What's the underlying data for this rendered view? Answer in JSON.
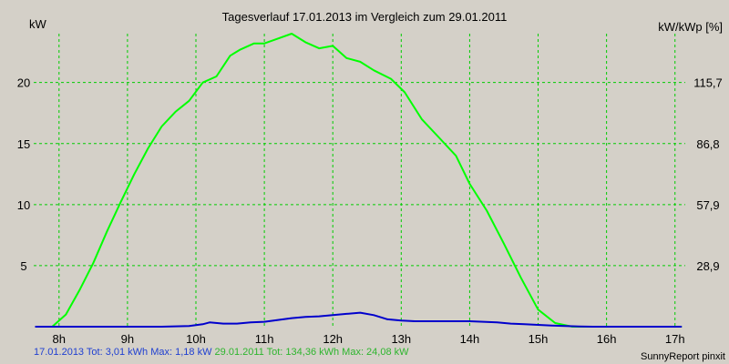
{
  "chart_data": {
    "type": "line",
    "title": "Tagesverlauf 17.01.2013 im Vergleich zum 29.01.2011",
    "ylabel_left": "kW",
    "ylabel_right": "kW/kWp [%]",
    "x_ticks": [
      "8h",
      "9h",
      "10h",
      "11h",
      "12h",
      "13h",
      "14h",
      "15h",
      "16h",
      "17h"
    ],
    "x_tick_hours": [
      8,
      9,
      10,
      11,
      12,
      13,
      14,
      15,
      16,
      17
    ],
    "xlim": [
      7.63,
      17.15
    ],
    "ylim": [
      0,
      24
    ],
    "y_ticks_left": [
      5,
      10,
      15,
      20
    ],
    "y_ticks_right": [
      "28,9",
      "57,9",
      "86,8",
      "115,7"
    ],
    "grid": true,
    "colors": {
      "green": "#00ff00",
      "blue": "#0000cc",
      "grid": "#00cc00",
      "background": "#d4d0c8"
    },
    "series": [
      {
        "name": "29.01.2011",
        "color": "#00ff00",
        "x": [
          7.65,
          7.9,
          8.1,
          8.3,
          8.5,
          8.7,
          8.9,
          9.1,
          9.3,
          9.5,
          9.7,
          9.9,
          10.1,
          10.3,
          10.5,
          10.65,
          10.85,
          11.0,
          11.15,
          11.4,
          11.6,
          11.8,
          12.0,
          12.2,
          12.4,
          12.6,
          12.85,
          13.05,
          13.3,
          13.55,
          13.8,
          14.0,
          14.25,
          14.5,
          14.75,
          15.0,
          15.25,
          15.5,
          15.75,
          16.0,
          16.2,
          16.4,
          16.65,
          16.9,
          17.1
        ],
        "y": [
          0,
          0,
          1.0,
          3.0,
          5.2,
          7.8,
          10.2,
          12.5,
          14.6,
          16.4,
          17.6,
          18.5,
          20.0,
          20.5,
          22.2,
          22.7,
          23.2,
          23.2,
          23.5,
          24.0,
          23.3,
          22.8,
          23.0,
          22.0,
          21.7,
          21.0,
          20.3,
          19.2,
          17.0,
          15.5,
          14.0,
          11.7,
          9.5,
          6.8,
          4.0,
          1.4,
          0.3,
          0,
          0,
          0,
          0,
          0,
          0,
          0,
          0
        ]
      },
      {
        "name": "17.01.2013",
        "color": "#0000cc",
        "x": [
          7.65,
          8.0,
          8.5,
          9.0,
          9.5,
          9.9,
          10.1,
          10.2,
          10.4,
          10.6,
          10.8,
          11.0,
          11.2,
          11.4,
          11.6,
          11.8,
          12.0,
          12.2,
          12.4,
          12.6,
          12.8,
          13.0,
          13.2,
          13.4,
          13.6,
          13.8,
          14.0,
          14.2,
          14.4,
          14.6,
          14.8,
          15.0,
          15.2,
          15.4,
          15.6,
          15.8,
          16.0,
          16.5,
          17.1
        ],
        "y": [
          0,
          0,
          0,
          0,
          0,
          0.05,
          0.2,
          0.35,
          0.25,
          0.25,
          0.35,
          0.4,
          0.55,
          0.7,
          0.8,
          0.85,
          0.95,
          1.05,
          1.15,
          0.95,
          0.6,
          0.5,
          0.45,
          0.45,
          0.45,
          0.45,
          0.45,
          0.4,
          0.35,
          0.25,
          0.2,
          0.15,
          0.1,
          0.05,
          0.02,
          0,
          0,
          0,
          0
        ]
      }
    ]
  },
  "footer": {
    "blue_text": "17.01.2013 Tot: 3,01 kWh Max: 1,18 kW",
    "green_text": "29.01.2011 Tot: 134,36 kWh Max: 24,08 kW",
    "credit": "SunnyReport pinxit"
  }
}
